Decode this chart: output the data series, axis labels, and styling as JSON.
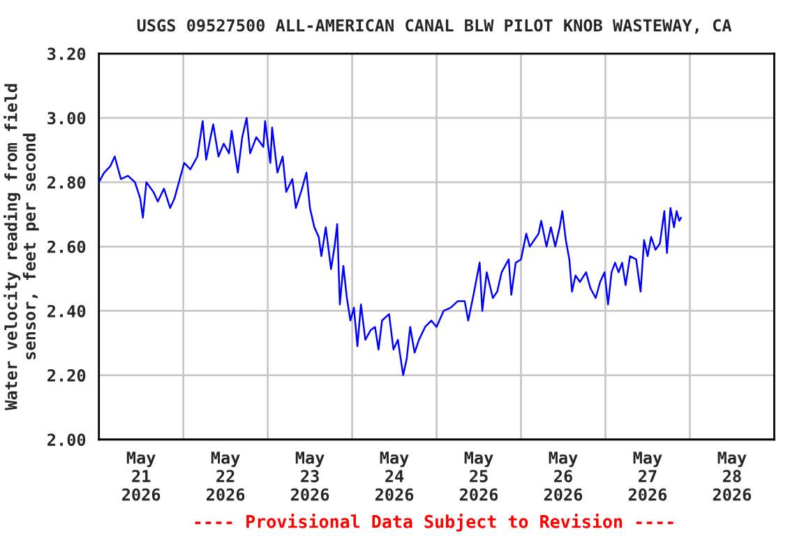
{
  "chart_data": {
    "type": "line",
    "title": "USGS 09527500 ALL-AMERICAN CANAL BLW PILOT KNOB WASTEWAY, CA",
    "ylabel": "Water velocity reading from field\nsensor, feet per second",
    "annotations": [
      "---- Provisional Data Subject to Revision ----"
    ],
    "xlim": [
      "2026-05-21T00:00",
      "2026-05-29T00:00"
    ],
    "xticks": [
      {
        "value": "2026-05-21T00:00",
        "label": null
      },
      {
        "value": "2026-05-21T12:00",
        "label": "May\n21\n2026"
      },
      {
        "value": "2026-05-22T00:00",
        "label": null
      },
      {
        "value": "2026-05-22T12:00",
        "label": "May\n22\n2026"
      },
      {
        "value": "2026-05-23T00:00",
        "label": null
      },
      {
        "value": "2026-05-23T12:00",
        "label": "May\n23\n2026"
      },
      {
        "value": "2026-05-24T00:00",
        "label": null
      },
      {
        "value": "2026-05-24T12:00",
        "label": "May\n24\n2026"
      },
      {
        "value": "2026-05-25T00:00",
        "label": null
      },
      {
        "value": "2026-05-25T12:00",
        "label": "May\n25\n2026"
      },
      {
        "value": "2026-05-26T00:00",
        "label": null
      },
      {
        "value": "2026-05-26T12:00",
        "label": "May\n26\n2026"
      },
      {
        "value": "2026-05-27T00:00",
        "label": null
      },
      {
        "value": "2026-05-27T12:00",
        "label": "May\n27\n2026"
      },
      {
        "value": "2026-05-28T00:00",
        "label": null
      },
      {
        "value": "2026-05-28T12:00",
        "label": "May\n28\n2026"
      },
      {
        "value": "2026-05-29T00:00",
        "label": null
      }
    ],
    "ylim": [
      2.0,
      3.2
    ],
    "yticks": [
      {
        "value": 2.0,
        "label": "2.00"
      },
      {
        "value": 2.2,
        "label": "2.20"
      },
      {
        "value": 2.4,
        "label": "2.40"
      },
      {
        "value": 2.6,
        "label": "2.60"
      },
      {
        "value": 2.8,
        "label": "2.80"
      },
      {
        "value": 3.0,
        "label": "3.00"
      },
      {
        "value": 3.2,
        "label": "3.20"
      }
    ],
    "grid": true,
    "legend": false,
    "series": [
      {
        "color": "#0000ff",
        "x": [
          "2026-05-21T00:00",
          "2026-05-21T01:30",
          "2026-05-21T03:15",
          "2026-05-21T04:30",
          "2026-05-21T06:15",
          "2026-05-21T08:15",
          "2026-05-21T10:15",
          "2026-05-21T11:45",
          "2026-05-21T12:30",
          "2026-05-21T13:30",
          "2026-05-21T15:30",
          "2026-05-21T16:45",
          "2026-05-21T18:30",
          "2026-05-21T20:15",
          "2026-05-21T21:30",
          "2026-05-21T22:45",
          "2026-05-22T00:15",
          "2026-05-22T02:00",
          "2026-05-22T04:00",
          "2026-05-22T05:30",
          "2026-05-22T06:30",
          "2026-05-22T07:45",
          "2026-05-22T08:30",
          "2026-05-22T10:00",
          "2026-05-22T11:30",
          "2026-05-22T13:00",
          "2026-05-22T13:45",
          "2026-05-22T15:30",
          "2026-05-22T16:45",
          "2026-05-22T18:00",
          "2026-05-22T19:00",
          "2026-05-22T20:45",
          "2026-05-22T22:45",
          "2026-05-22T23:15",
          "2026-05-23T00:45",
          "2026-05-23T01:15",
          "2026-05-23T02:45",
          "2026-05-23T04:15",
          "2026-05-23T05:15",
          "2026-05-23T07:00",
          "2026-05-23T08:00",
          "2026-05-23T09:45",
          "2026-05-23T11:00",
          "2026-05-23T12:00",
          "2026-05-23T13:15",
          "2026-05-23T14:30",
          "2026-05-23T15:15",
          "2026-05-23T16:30",
          "2026-05-23T18:00",
          "2026-05-23T19:00",
          "2026-05-23T19:45",
          "2026-05-23T20:30",
          "2026-05-23T21:30",
          "2026-05-23T22:30",
          "2026-05-23T23:30",
          "2026-05-24T00:30",
          "2026-05-24T01:30",
          "2026-05-24T02:30",
          "2026-05-24T03:45",
          "2026-05-24T05:15",
          "2026-05-24T06:30",
          "2026-05-24T07:30",
          "2026-05-24T08:30",
          "2026-05-24T10:30",
          "2026-05-24T11:45",
          "2026-05-24T13:00",
          "2026-05-24T14:30",
          "2026-05-24T15:30",
          "2026-05-24T16:30",
          "2026-05-24T17:45",
          "2026-05-24T19:00",
          "2026-05-24T20:45",
          "2026-05-24T22:30",
          "2026-05-25T00:00",
          "2026-05-25T02:00",
          "2026-05-25T04:00",
          "2026-05-25T06:00",
          "2026-05-25T08:00",
          "2026-05-25T09:00",
          "2026-05-25T10:30",
          "2026-05-25T12:15",
          "2026-05-25T13:00",
          "2026-05-25T14:15",
          "2026-05-25T16:00",
          "2026-05-25T17:15",
          "2026-05-25T18:30",
          "2026-05-25T20:30",
          "2026-05-25T21:15",
          "2026-05-25T22:30",
          "2026-05-26T00:00",
          "2026-05-26T01:30",
          "2026-05-26T02:30",
          "2026-05-26T03:45",
          "2026-05-26T05:00",
          "2026-05-26T05:45",
          "2026-05-26T07:15",
          "2026-05-26T08:30",
          "2026-05-26T09:45",
          "2026-05-26T11:00",
          "2026-05-26T11:45",
          "2026-05-26T12:45",
          "2026-05-26T13:45",
          "2026-05-26T14:30",
          "2026-05-26T15:30",
          "2026-05-26T16:45",
          "2026-05-26T18:30",
          "2026-05-26T19:45",
          "2026-05-26T21:15",
          "2026-05-26T22:30",
          "2026-05-26T23:45",
          "2026-05-27T00:45",
          "2026-05-27T01:45",
          "2026-05-27T02:45",
          "2026-05-27T03:45",
          "2026-05-27T04:45",
          "2026-05-27T05:45",
          "2026-05-27T07:00",
          "2026-05-27T08:45",
          "2026-05-27T10:00",
          "2026-05-27T11:00",
          "2026-05-27T12:00",
          "2026-05-27T13:00",
          "2026-05-27T14:15",
          "2026-05-27T15:30",
          "2026-05-27T16:45",
          "2026-05-27T17:30",
          "2026-05-27T18:30",
          "2026-05-27T19:30",
          "2026-05-27T20:15",
          "2026-05-27T21:00",
          "2026-05-27T21:30"
        ],
        "values": [
          2.8,
          2.83,
          2.85,
          2.88,
          2.81,
          2.82,
          2.8,
          2.75,
          2.69,
          2.8,
          2.77,
          2.74,
          2.78,
          2.72,
          2.75,
          2.8,
          2.86,
          2.84,
          2.88,
          2.99,
          2.87,
          2.94,
          2.98,
          2.88,
          2.92,
          2.89,
          2.96,
          2.83,
          2.94,
          3.0,
          2.89,
          2.94,
          2.91,
          2.99,
          2.86,
          2.97,
          2.83,
          2.88,
          2.77,
          2.81,
          2.72,
          2.78,
          2.83,
          2.72,
          2.66,
          2.63,
          2.57,
          2.66,
          2.53,
          2.6,
          2.67,
          2.42,
          2.54,
          2.44,
          2.37,
          2.41,
          2.29,
          2.42,
          2.31,
          2.34,
          2.35,
          2.28,
          2.37,
          2.39,
          2.28,
          2.31,
          2.2,
          2.25,
          2.35,
          2.27,
          2.31,
          2.35,
          2.37,
          2.35,
          2.4,
          2.41,
          2.43,
          2.43,
          2.37,
          2.45,
          2.55,
          2.4,
          2.52,
          2.44,
          2.46,
          2.52,
          2.56,
          2.45,
          2.55,
          2.56,
          2.64,
          2.6,
          2.62,
          2.64,
          2.68,
          2.6,
          2.66,
          2.6,
          2.66,
          2.71,
          2.62,
          2.56,
          2.46,
          2.51,
          2.49,
          2.52,
          2.47,
          2.44,
          2.49,
          2.52,
          2.42,
          2.52,
          2.55,
          2.52,
          2.55,
          2.48,
          2.57,
          2.56,
          2.46,
          2.62,
          2.57,
          2.63,
          2.59,
          2.61,
          2.71,
          2.58,
          2.72,
          2.66,
          2.71,
          2.68,
          2.69
        ]
      }
    ]
  }
}
